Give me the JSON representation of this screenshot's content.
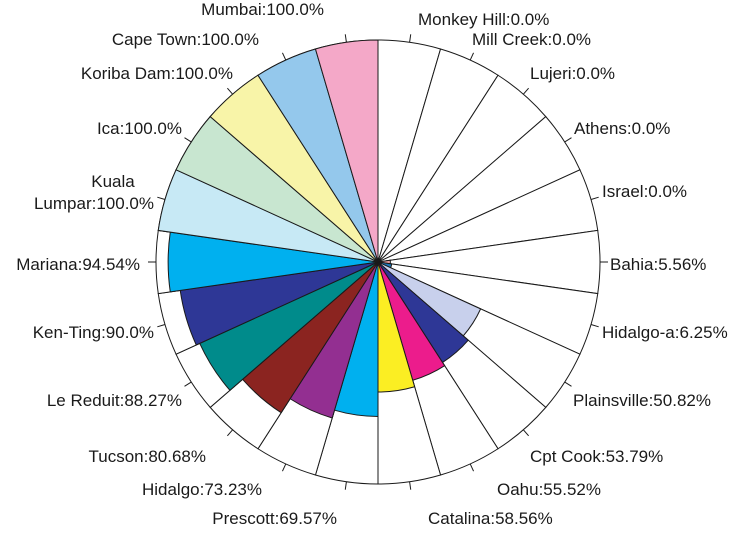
{
  "chart_data": {
    "type": "pie",
    "subtype": "polar-area (radius proportional to value, percent scale 0-100)",
    "value_unit": "%",
    "r_range": [
      0,
      100
    ],
    "categories": [
      "Monkey Hill",
      "Mill Creek",
      "Lujeri",
      "Athens",
      "Israel",
      "Bahia",
      "Hidalgo-a",
      "Plainsville",
      "Cpt Cook",
      "Oahu",
      "Catalina",
      "Prescott",
      "Hidalgo",
      "Tucson",
      "Le Reduit",
      "Ken-Ting",
      "Mariana",
      "Kuala Lumpar",
      "Ica",
      "Koriba Dam",
      "Cape Town",
      "Mumbai"
    ],
    "label_texts": [
      "Monkey Hill:0.0%",
      "Mill Creek:0.0%",
      "Lujeri:0.0%",
      "Athens:0.0%",
      "Israel:0.0%",
      "Bahia:5.56%",
      "Hidalgo-a:6.25%",
      "Plainsville:50.82%",
      "Cpt Cook:53.79%",
      "Oahu:55.52%",
      "Catalina:58.56%",
      "Prescott:69.57%",
      "Hidalgo:73.23%",
      "Tucson:80.68%",
      "Le Reduit:88.27%",
      "Ken-Ting:90.0%",
      "Mariana:94.54%",
      "Kuala Lumpar:100.0%",
      "Ica:100.0%",
      "Koriba Dam:100.0%",
      "Cape Town:100.0%",
      "Mumbai:100.0%"
    ],
    "values": [
      0.0,
      0.0,
      0.0,
      0.0,
      0.0,
      5.56,
      6.25,
      50.82,
      53.79,
      55.52,
      58.56,
      69.57,
      73.23,
      80.68,
      88.27,
      90.0,
      94.54,
      100.0,
      100.0,
      100.0,
      100.0,
      100.0
    ],
    "colors": [
      "#ffffff",
      "#ffffff",
      "#ffffff",
      "#ffffff",
      "#ffffff",
      "#f0a0a0",
      "#1a78b8",
      "#c8d0ec",
      "#2e3796",
      "#ec1c8c",
      "#fbee23",
      "#00b0ef",
      "#932f91",
      "#8b2420",
      "#008b8b",
      "#2e3796",
      "#00b0ef",
      "#c7e9f5",
      "#c8e6d0",
      "#f8f4a8",
      "#94c8ec",
      "#f4a8c8"
    ],
    "direction": "clockwise from 12 o'clock",
    "legend": "none (labels placed around the circle)",
    "grid": false
  }
}
